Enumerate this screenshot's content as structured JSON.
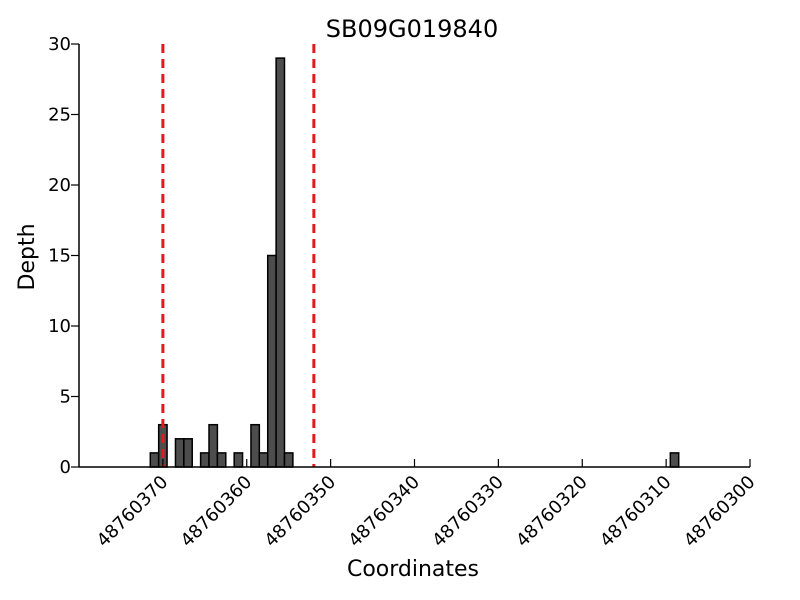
{
  "chart_data": {
    "type": "bar",
    "title": "SB09G019840",
    "xlabel": "Coordinates",
    "ylabel": "Depth",
    "xlim": [
      48760380,
      48760300
    ],
    "x_reversed": true,
    "ylim": [
      0,
      30
    ],
    "x_ticks": [
      48760370,
      48760360,
      48760350,
      48760340,
      48760330,
      48760320,
      48760310,
      48760300
    ],
    "x_tick_labels": [
      "48760370",
      "48760360",
      "48760350",
      "48760340",
      "48760330",
      "48760320",
      "48760310",
      "48760300"
    ],
    "y_ticks": [
      0,
      5,
      10,
      15,
      20,
      25,
      30
    ],
    "y_tick_labels": [
      "0",
      "5",
      "10",
      "15",
      "20",
      "25",
      "30"
    ],
    "bar_width": 1,
    "x": [
      48760371,
      48760370,
      48760368,
      48760367,
      48760365,
      48760364,
      48760363,
      48760361,
      48760359,
      48760358,
      48760357,
      48760356,
      48760355,
      48760354,
      48760309
    ],
    "values": [
      1,
      3,
      2,
      2,
      1,
      3,
      1,
      1,
      3,
      1,
      15,
      29,
      1,
      0,
      1
    ],
    "vertical_lines": [
      48760370,
      48760352
    ],
    "vertical_line_color": "#e31a1c",
    "bar_color": "#4d4d4d",
    "grid": false
  }
}
